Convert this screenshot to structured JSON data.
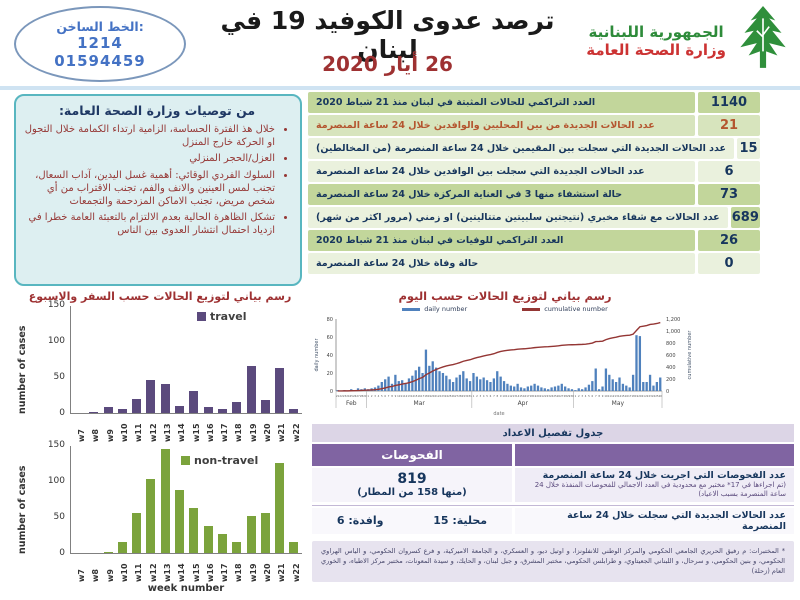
{
  "header": {
    "hotline": {
      "label": "الخط الساخن:",
      "short_number": "1214",
      "phone_number": "01594459"
    },
    "title": "ترصد عدوى الكوفيد 19 في لبنان",
    "date": "26 أيار 2020",
    "ministry": {
      "line1": "الجمهورية اللبنانية",
      "line2": "وزارة الصحة العامة"
    }
  },
  "recommendations": {
    "title": "من توصيات وزارة الصحة العامة:",
    "items": [
      "خلال هذ الفترة الحساسة، الزامية ارتداء الكمامة خلال التجول او الحركة خارج المنزل",
      "العزل/الحجر المنزلي",
      "السلوك الفردي الوقائي: أهمية غسل اليدين، آداب السعال، تجنب لمس العينين والانف والفم، تجنب الاقتراب من أي شخص مريض، تجنب الاماكن المزدحمة والتجمعات",
      "تشكل الظاهرة الحالية بعدم الالتزام بالتعبئة العامة خطرا في ازدياد احتمال انتشار العدوى بين الناس"
    ]
  },
  "stats_rows": [
    {
      "value": "1140",
      "label": "العدد التراكمي للحالات المثبتة في لبنان منذ 21 شباط 2020"
    },
    {
      "value": "21",
      "label": "عدد الحالات الجديدة من بين المحليين والوافدين خلال 24 ساعة المنصرمة"
    },
    {
      "value": "15",
      "label": "عدد الحالات الجديدة التي سجلت بين المقيمين خلال 24 ساعة المنصرمة (من المخالطين)"
    },
    {
      "value": "6",
      "label": "عدد الحالات الجديدة التي سجلت بين الوافدين خلال 24 ساعة المنصرمة"
    },
    {
      "value": "73",
      "label": "حالة استشفاء منها 3 في العناية المركزة خلال 24 ساعة المنصرمة"
    },
    {
      "value": "689",
      "label": "عدد الحالات مع شفاء مخبري (نتيجتين سلبيتين متتاليتين) او زمني (مرور اكثر من شهر)"
    },
    {
      "value": "26",
      "label": "العدد التراكمي للوفيات في لبنان منذ 21 شباط 2020"
    },
    {
      "value": "0",
      "label": "حالة وفاة خلال 24 ساعة المنصرمة"
    }
  ],
  "chart_data": [
    {
      "id": "travel",
      "type": "bar",
      "title": "رسم بياني لتوزيع الحالات حسب السفر والاسبوع",
      "legend": "travel",
      "color": "#5b4a7d",
      "categories": [
        "w7",
        "w8",
        "w9",
        "w10",
        "w11",
        "w12",
        "w13",
        "w14",
        "w15",
        "w16",
        "w17",
        "w18",
        "w19",
        "w20",
        "w21",
        "w22"
      ],
      "values": [
        0,
        1,
        8,
        6,
        20,
        46,
        40,
        10,
        30,
        9,
        6,
        16,
        65,
        18,
        63,
        6
      ],
      "ylabel": "number of cases",
      "ylim": [
        0,
        150
      ],
      "yticks": [
        0,
        50,
        100,
        150
      ]
    },
    {
      "id": "non-travel",
      "type": "bar",
      "legend": "non-travel",
      "color": "#7ba33c",
      "categories": [
        "w7",
        "w8",
        "w9",
        "w10",
        "w11",
        "w12",
        "w13",
        "w14",
        "w15",
        "w16",
        "w17",
        "w18",
        "w19",
        "w20",
        "w21",
        "w22"
      ],
      "values": [
        0,
        0,
        2,
        16,
        56,
        103,
        145,
        87,
        63,
        37,
        27,
        15,
        52,
        56,
        125,
        16
      ],
      "xlabel": "week number",
      "ylabel": "number of cases",
      "ylim": [
        0,
        150
      ],
      "yticks": [
        0,
        50,
        100,
        150
      ]
    },
    {
      "id": "daily",
      "type": "bar+line",
      "title": "رسم بياني لتوزيع الحالات حسب اليوم",
      "legend_bar": "daily number",
      "legend_line": "cumulative number",
      "bar_color": "#4f81bd",
      "line_color": "#943634",
      "left_axis": {
        "label": "daily number",
        "ticks": [
          0,
          20,
          40,
          60,
          80
        ],
        "max": 80
      },
      "right_axis": {
        "label": "cumulative number",
        "tick_labels": [
          "0",
          "200",
          "400",
          "600",
          "800",
          "1,000",
          "1,200"
        ],
        "step": 200,
        "max": 1200
      },
      "xlabel": "date",
      "months": [
        {
          "label": "Feb",
          "start": 21,
          "count": 9
        },
        {
          "label": "Mar",
          "start": 1,
          "count": 31
        },
        {
          "label": "Apr",
          "start": 1,
          "count": 30
        },
        {
          "label": "May",
          "start": 1,
          "count": 26
        }
      ],
      "values": [
        1,
        0,
        1,
        0,
        2,
        1,
        3,
        2,
        3,
        2,
        3,
        4,
        6,
        10,
        13,
        16,
        8,
        18,
        11,
        12,
        9,
        14,
        17,
        23,
        27,
        20,
        46,
        28,
        33,
        26,
        22,
        20,
        17,
        13,
        10,
        15,
        18,
        22,
        14,
        11,
        20,
        16,
        13,
        15,
        12,
        10,
        14,
        22,
        16,
        11,
        8,
        6,
        5,
        8,
        4,
        3,
        5,
        6,
        8,
        6,
        4,
        3,
        2,
        4,
        5,
        6,
        8,
        5,
        3,
        2,
        1,
        3,
        2,
        4,
        7,
        11,
        25,
        2,
        5,
        25,
        18,
        13,
        10,
        15,
        8,
        6,
        4,
        18,
        62,
        61,
        10,
        10,
        18,
        6,
        10,
        15
      ],
      "cumulative_total": 1140
    }
  ],
  "details_table": {
    "title": "جدول تفصيل الاعداد",
    "header": "الفحوصات",
    "tests": {
      "value": "819",
      "note": "(منها 158 من المطار)",
      "label": "عدد الفحوصات التي اجريت خلال 24 ساعة المنصرمة",
      "sublabel": "(تم اجراءها في 17* مختبر مع محدودية في العدد الاجمالي للفحوصات المنفذة خلال 24 ساعة المنصرمة بسبب الاعياد)"
    },
    "cases": {
      "local": "محلية: 15",
      "arrivals": "وافدة: 6",
      "label": "عدد الحالات الجديدة التي سجلت خلال 24 ساعة المنصرمة"
    }
  },
  "footnote": "* المختبرات: م رفيق الحريري الجامعي الحكومي والمركز الوطني للانفلونزا، و اوتيل ديو، و العسكري، و الجامعة الاميركية، و فرع كسروان الحكومي، و الياس الهراوي الحكومي، و بنين الحكومي، و سرحال، و اللبناني الجعيتاوي، و طرابلس الحكومي، مختبر المشرق، و جبل لبنان، و الحايك، و سيدة المعونات، مختبر مركز الاطباء، و الخوري العام (زحلة)",
  "colors": {
    "travel": "#5b4a7d",
    "non_travel": "#7ba33c",
    "daily_bar": "#4f81bd",
    "cumulative_line": "#943634",
    "table_green_dark": "#c2d69b",
    "table_green_mid": "#d7e4bd",
    "table_green_light": "#eaf1dd",
    "purple_header": "#8064a2",
    "lavender_band": "#dcd5e6",
    "title_red": "#9e3132",
    "navy": "#17365d",
    "box_border": "#58b6c0",
    "hotline_blue": "#4472c4"
  }
}
